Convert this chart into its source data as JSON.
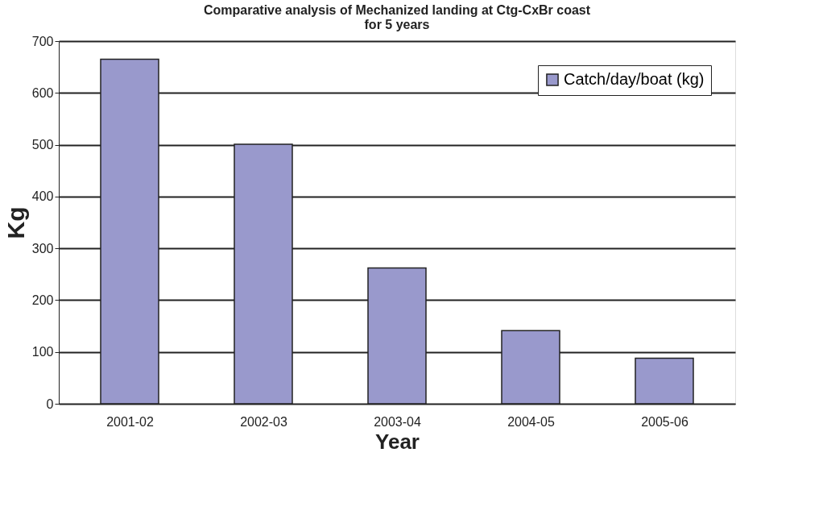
{
  "chart_data": {
    "type": "bar",
    "title": [
      "Comparative analysis of Mechanized landing at Ctg-CxBr coast",
      "for 5 years"
    ],
    "xlabel": "Year",
    "ylabel": "Kg",
    "categories": [
      "2001-02",
      "2002-03",
      "2003-04",
      "2004-05",
      "2005-06"
    ],
    "series": [
      {
        "name": "Catch/day/boat (kg)",
        "color": "#9999cc",
        "values": [
          665,
          501,
          262,
          141,
          88
        ]
      }
    ],
    "ylim": [
      0,
      700
    ],
    "yticks": [
      0,
      100,
      200,
      300,
      400,
      500,
      600,
      700
    ],
    "grid": "y",
    "legend": "top right"
  }
}
